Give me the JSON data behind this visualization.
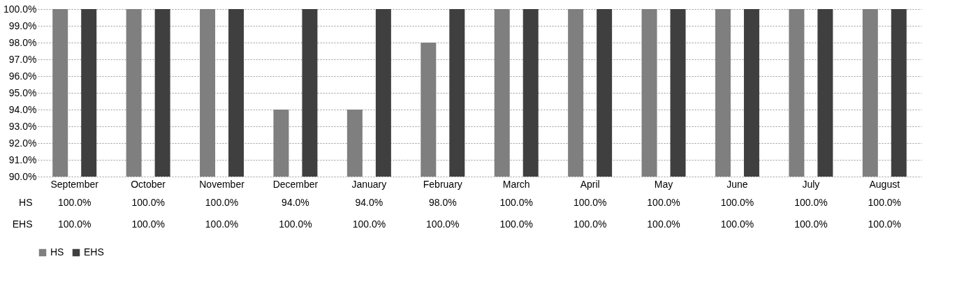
{
  "chart_data": {
    "type": "bar",
    "categories": [
      "September",
      "October",
      "November",
      "December",
      "January",
      "February",
      "March",
      "April",
      "May",
      "June",
      "July",
      "August"
    ],
    "series": [
      {
        "name": "HS",
        "color": "#7f7f7f",
        "values": [
          100,
          100,
          100,
          94,
          94,
          98,
          100,
          100,
          100,
          100,
          100,
          100
        ],
        "value_labels": [
          "100.0%",
          "100.0%",
          "100.0%",
          "94.0%",
          "94.0%",
          "98.0%",
          "100.0%",
          "100.0%",
          "100.0%",
          "100.0%",
          "100.0%",
          "100.0%"
        ]
      },
      {
        "name": "EHS",
        "color": "#3f3f3f",
        "values": [
          100,
          100,
          100,
          100,
          100,
          100,
          100,
          100,
          100,
          100,
          100,
          100
        ],
        "value_labels": [
          "100.0%",
          "100.0%",
          "100.0%",
          "100.0%",
          "100.0%",
          "100.0%",
          "100.0%",
          "100.0%",
          "100.0%",
          "100.0%",
          "100.0%",
          "100.0%"
        ]
      }
    ],
    "ylim": [
      90,
      100
    ],
    "yticks": [
      {
        "value": 90,
        "label": "90.0%"
      },
      {
        "value": 91,
        "label": "91.0%"
      },
      {
        "value": 92,
        "label": "92.0%"
      },
      {
        "value": 93,
        "label": "93.0%"
      },
      {
        "value": 94,
        "label": "94.0%"
      },
      {
        "value": 95,
        "label": "95.0%"
      },
      {
        "value": 96,
        "label": "96.0%"
      },
      {
        "value": 97,
        "label": "97.0%"
      },
      {
        "value": 98,
        "label": "98.0%"
      },
      {
        "value": 99,
        "label": "99.0%"
      },
      {
        "value": 100,
        "label": "100.0%"
      }
    ],
    "grid": "y",
    "legend": "bottom"
  }
}
